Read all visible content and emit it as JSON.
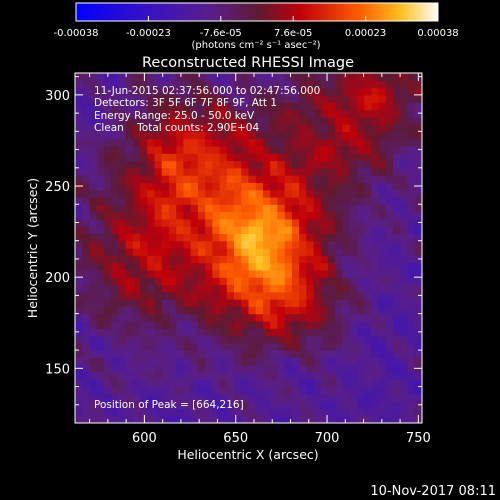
{
  "chart_data": {
    "type": "heatmap",
    "title": "Reconstructed RHESSI Image",
    "xlabel": "Heliocentric X (arcsec)",
    "ylabel": "Heliocentric Y (arcsec)",
    "xlim": [
      562,
      752
    ],
    "ylim": [
      120,
      312
    ],
    "x_ticks": [
      600,
      650,
      700,
      750
    ],
    "y_ticks": [
      150,
      200,
      250,
      300
    ],
    "colorbar": {
      "min": -0.00038,
      "max": 0.00038,
      "ticks": [
        "-0.00038",
        "-0.00023",
        "-7.6e-05",
        "7.6e-05",
        "0.00023",
        "0.00038"
      ],
      "unit_label": "(photons cm⁻² s⁻¹ asec⁻²)"
    },
    "annotations": [
      "11-Jun-2015 02:37:56.000 to 02:47:56.000",
      "Detectors: 3F 5F 6F 7F 8F 9F, Att 1",
      "Energy Range: 25.0 - 50.0 keV",
      "Clean    Total counts: 2.90E+04"
    ],
    "peak_label": "Position of Peak = [664,216]",
    "peak": [
      664,
      216
    ],
    "peak_value": 0.00038
  },
  "footer": {
    "date": "10-Nov-2017 08:11"
  }
}
